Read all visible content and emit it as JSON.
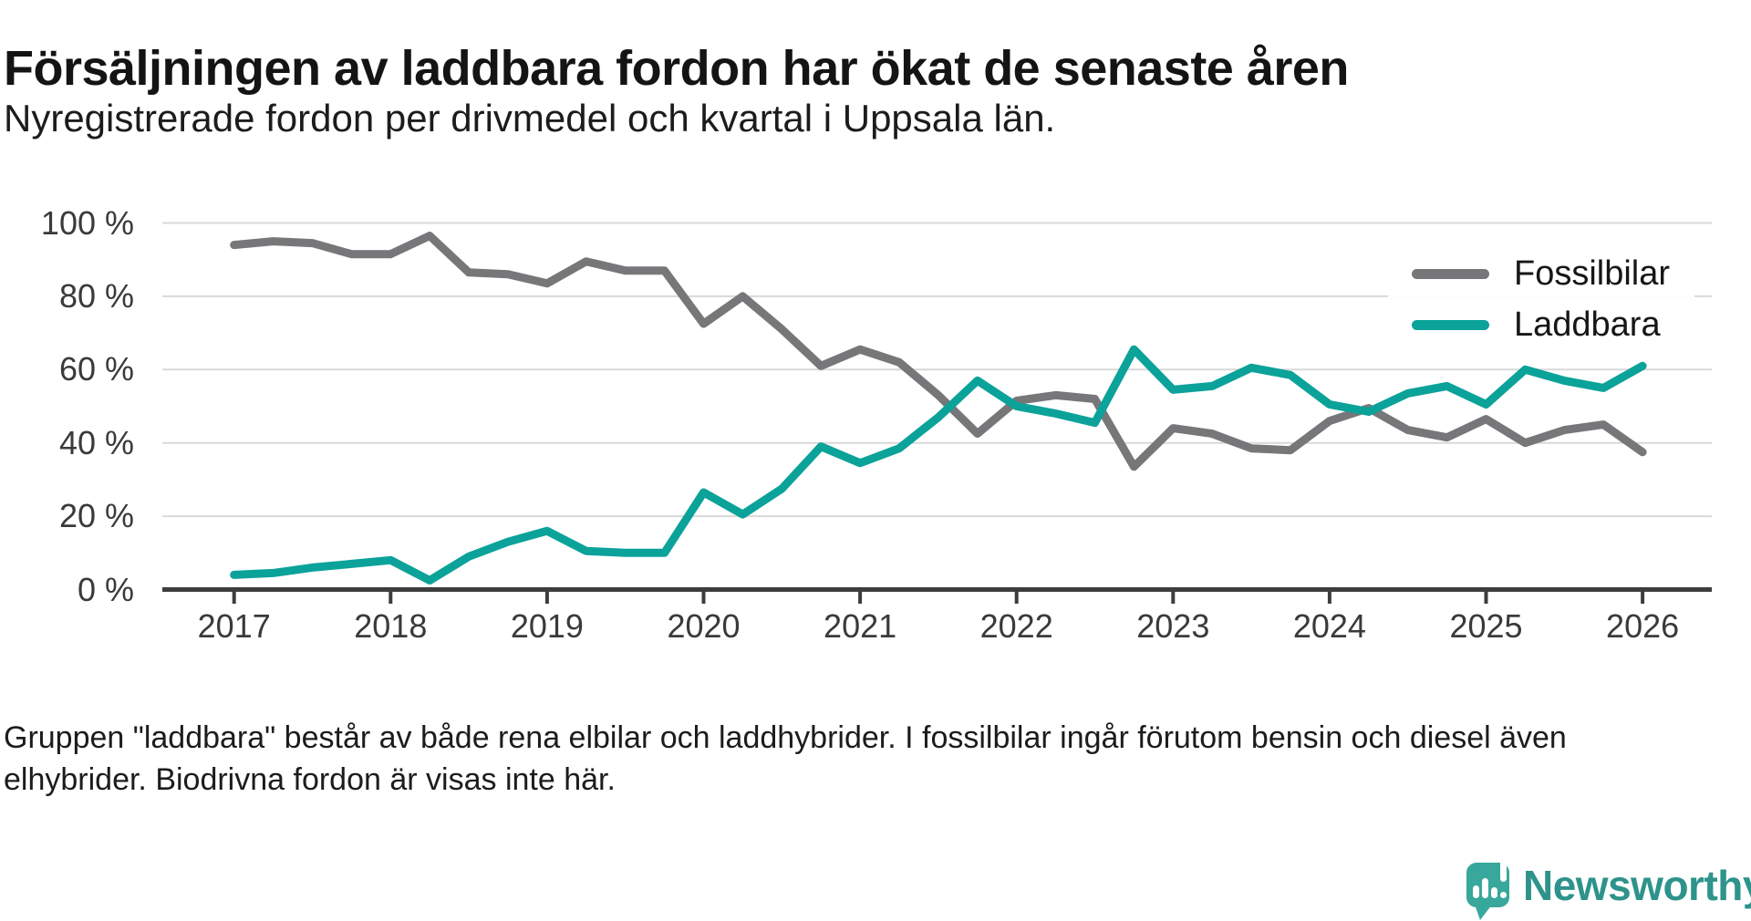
{
  "header": {
    "title": "Försäljningen av laddbara fordon har ökat de senaste åren",
    "subtitle": "Nyregistrerade fordon per drivmedel och kvartal i Uppsala län."
  },
  "chart_data": {
    "type": "line",
    "title": "Försäljningen av laddbara fordon har ökat de senaste åren",
    "subtitle": "Nyregistrerade fordon per drivmedel och kvartal i Uppsala län.",
    "x_start": "2017 Q1",
    "x_end": "2026 Q1",
    "points_per_year": 4,
    "x_tick_labels": [
      "2017",
      "2018",
      "2019",
      "2020",
      "2021",
      "2022",
      "2023",
      "2024",
      "2025",
      "2026"
    ],
    "y_ticks": [
      "100 %",
      "80 %",
      "60 %",
      "40 %",
      "20 %",
      "0 %"
    ],
    "ylim": [
      0,
      100
    ],
    "grid": true,
    "grid_color": "#d9d9d9",
    "axis_color": "#3d3d3d",
    "legend_position": "top-right",
    "series": [
      {
        "name": "Fossilbilar",
        "color": "#77777a",
        "values": [
          94,
          95,
          94.5,
          91.5,
          91.5,
          96.5,
          86.5,
          86,
          83.5,
          89.5,
          87,
          87,
          72.5,
          80,
          71,
          61,
          65.5,
          62,
          53,
          42.5,
          51.5,
          53,
          52,
          33.5,
          44,
          42.5,
          38.5,
          38,
          46,
          49.5,
          43.5,
          41.5,
          46.5,
          40,
          43.5,
          45,
          37.5
        ]
      },
      {
        "name": "Laddbara",
        "color": "#0ba29a",
        "values": [
          4,
          4.5,
          6,
          7,
          8,
          2.5,
          9,
          13,
          16,
          10.5,
          10,
          10,
          26.5,
          20.5,
          27.5,
          39,
          34.5,
          38.5,
          47,
          57,
          50,
          48,
          45.5,
          65.5,
          54.5,
          55.5,
          60.5,
          58.5,
          50.5,
          48.5,
          53.5,
          55.5,
          50.5,
          60,
          57,
          55,
          61
        ]
      }
    ]
  },
  "footnote": {
    "text": "Gruppen \"laddbara\" består av både rena elbilar och laddhybrider. I fossilbilar ingår förutom bensin och diesel även\nelhybrider. Biodrivna fordon är visas inte här."
  },
  "branding": {
    "name": "Newsworthy",
    "text_color": "#2d938b",
    "icon_color": "#38a79c",
    "icon": "newsworthy-speech-bubble-chart-icon"
  }
}
